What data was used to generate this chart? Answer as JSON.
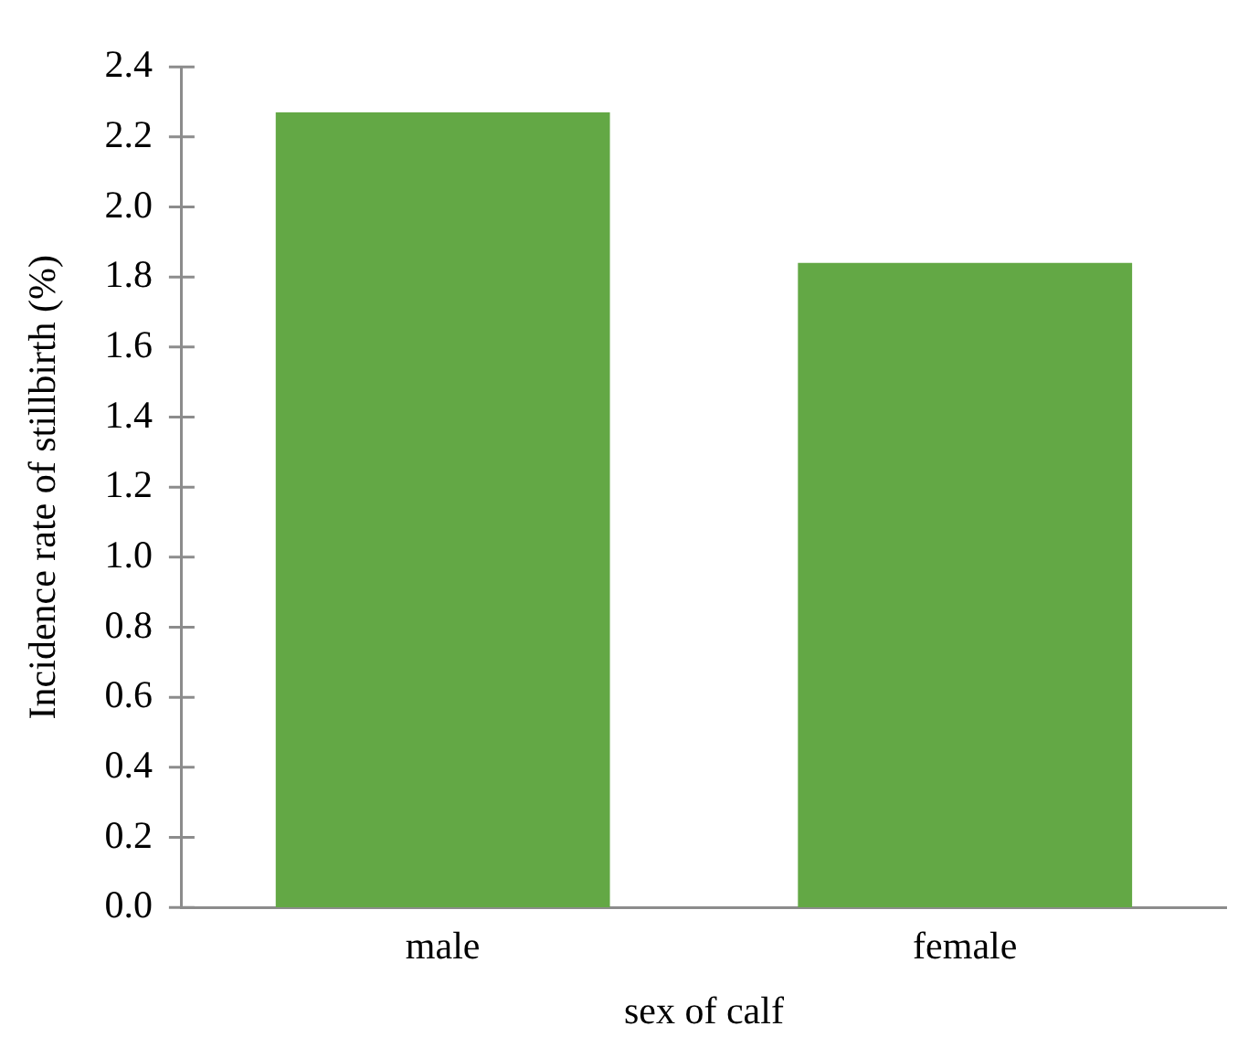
{
  "chart_data": {
    "type": "bar",
    "xlabel": "sex of calf",
    "ylabel": "Incidence rate of stillbirth (%)",
    "categories": [
      "male",
      "female"
    ],
    "values": [
      2.27,
      1.84
    ],
    "color": "#63a845",
    "ylim": [
      0,
      2.4
    ],
    "yticks": [
      {
        "value": 0,
        "label": "0.0"
      },
      {
        "value": 0.2,
        "label": "0.2"
      },
      {
        "value": 0.4,
        "label": "0.4"
      },
      {
        "value": 0.6,
        "label": "0.6"
      },
      {
        "value": 0.8,
        "label": "0.8"
      },
      {
        "value": 1,
        "label": "1.0"
      },
      {
        "value": 1.2,
        "label": "1.2"
      },
      {
        "value": 1.4,
        "label": "1.4"
      },
      {
        "value": 1.6,
        "label": "1.6"
      },
      {
        "value": 1.8,
        "label": "1.8"
      },
      {
        "value": 2,
        "label": "2.0"
      },
      {
        "value": 2.2,
        "label": "2.2"
      },
      {
        "value": 2.4,
        "label": "2.4"
      }
    ],
    "grid": false,
    "legend": false
  }
}
